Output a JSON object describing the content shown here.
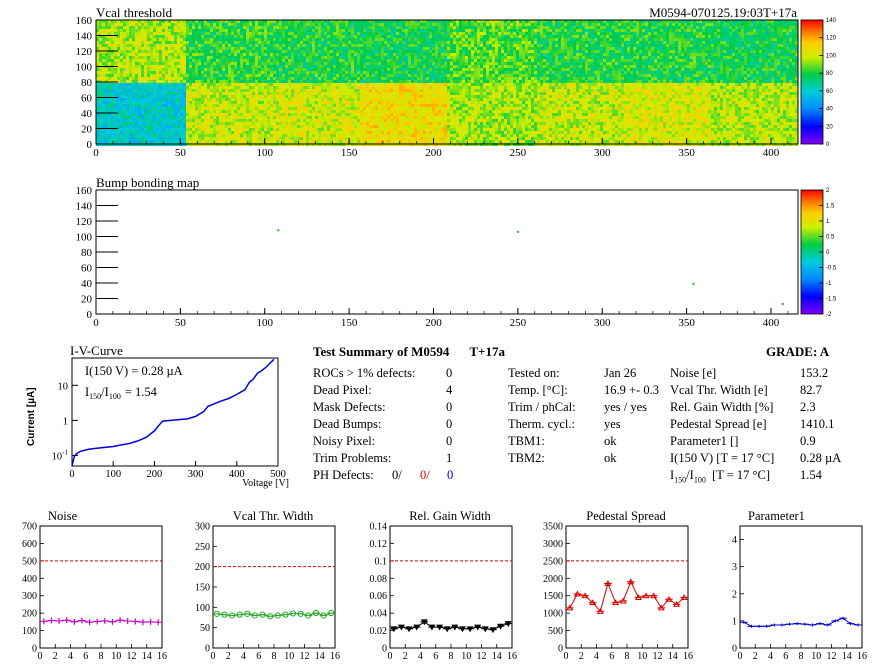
{
  "header": {
    "vcal_title": "Vcal threshold",
    "module_id": "M0594-070125.19:03T+17a",
    "bump_title": "Bump bonding map"
  },
  "chart_data": [
    {
      "type": "heatmap",
      "title": "Vcal threshold",
      "xlim": [
        0,
        416
      ],
      "ylim": [
        0,
        160
      ],
      "x_ticks": [
        "0",
        "50",
        "100",
        "150",
        "200",
        "250",
        "300",
        "350",
        "400"
      ],
      "y_ticks": [
        "0",
        "20",
        "40",
        "60",
        "80",
        "100",
        "120",
        "140",
        "160"
      ],
      "color_scale": {
        "min": 0,
        "max": 140,
        "ticks": [
          "0",
          "20",
          "40",
          "60",
          "80",
          "100",
          "120",
          "140"
        ]
      },
      "roc_means_top": [
        95,
        82,
        80,
        78,
        86,
        80,
        80,
        78
      ],
      "roc_means_bottom": [
        60,
        98,
        100,
        108,
        94,
        98,
        102,
        96
      ]
    },
    {
      "type": "heatmap",
      "title": "Bump bonding map",
      "xlim": [
        0,
        416
      ],
      "ylim": [
        0,
        160
      ],
      "x_ticks": [
        "0",
        "50",
        "100",
        "150",
        "200",
        "250",
        "300",
        "350",
        "400"
      ],
      "y_ticks": [
        "0",
        "20",
        "40",
        "60",
        "80",
        "100",
        "120",
        "140",
        "160"
      ],
      "color_scale": {
        "min": -2,
        "max": 2,
        "ticks": [
          "-2",
          "-1.5",
          "-1",
          "-0.5",
          "0",
          "0.5",
          "1",
          "1.5",
          "2"
        ]
      },
      "defects": [
        {
          "x": 108,
          "y": 108,
          "color": "#22bb22"
        },
        {
          "x": 250,
          "y": 106,
          "color": "#22bb22"
        },
        {
          "x": 354,
          "y": 39,
          "color": "#22bb22"
        },
        {
          "x": 407,
          "y": 13,
          "color": "#22bb22"
        }
      ]
    },
    {
      "type": "line",
      "title": "I-V-Curve",
      "xlabel": "Voltage [V]",
      "ylabel": "Current [µA]",
      "xlim": [
        0,
        500
      ],
      "ylim_log": [
        0.05,
        60
      ],
      "x_ticks": [
        "0",
        "100",
        "200",
        "300",
        "400",
        "500"
      ],
      "y_ticks": [
        "10^-1",
        "1",
        "10"
      ],
      "annotation_line1": "I(150 V) = 0.28 µA",
      "annotation_line2_sub1": "150",
      "annotation_line2_sub2": "100",
      "annotation_line2_value": "=  1.54",
      "x": [
        0,
        5,
        10,
        20,
        40,
        60,
        80,
        100,
        120,
        140,
        160,
        180,
        200,
        210,
        220,
        240,
        260,
        280,
        300,
        320,
        330,
        340,
        360,
        380,
        400,
        420,
        430,
        440,
        450,
        460,
        470,
        480,
        490
      ],
      "y": [
        0.05,
        0.09,
        0.11,
        0.13,
        0.15,
        0.16,
        0.17,
        0.18,
        0.2,
        0.22,
        0.26,
        0.33,
        0.5,
        0.7,
        0.95,
        1.0,
        1.05,
        1.1,
        1.3,
        1.8,
        2.5,
        2.8,
        3.5,
        4.2,
        5.5,
        7.5,
        12,
        15,
        22,
        26,
        32,
        42,
        55
      ],
      "color": "#0000dd"
    },
    {
      "type": "line",
      "title": "Noise",
      "xlim": [
        0,
        16
      ],
      "ylim": [
        0,
        700
      ],
      "threshold": 500,
      "color": "#cc00cc",
      "marker": "plus",
      "x_ticks": [
        "0",
        "2",
        "4",
        "6",
        "8",
        "10",
        "12",
        "14",
        "16"
      ],
      "y_ticks": [
        "0",
        "100",
        "200",
        "300",
        "400",
        "500",
        "600",
        "700"
      ],
      "values": [
        153,
        158,
        155,
        160,
        150,
        158,
        148,
        152,
        156,
        150,
        160,
        155,
        152,
        148,
        150,
        148
      ]
    },
    {
      "type": "line",
      "title": "Vcal Thr. Width",
      "xlim": [
        0,
        16
      ],
      "ylim": [
        0,
        300
      ],
      "threshold": 200,
      "color": "#22aa22",
      "marker": "circle",
      "x_ticks": [
        "0",
        "2",
        "4",
        "6",
        "8",
        "10",
        "12",
        "14",
        "16"
      ],
      "y_ticks": [
        "0",
        "50",
        "100",
        "150",
        "200",
        "250",
        "300"
      ],
      "values": [
        84,
        82,
        80,
        82,
        84,
        80,
        82,
        78,
        80,
        82,
        85,
        84,
        80,
        86,
        80,
        86
      ]
    },
    {
      "type": "line",
      "title": "Rel. Gain Width",
      "xlim": [
        0,
        16
      ],
      "ylim": [
        0,
        0.14
      ],
      "threshold": 0.1,
      "color": "#000000",
      "marker": "triangle",
      "x_ticks": [
        "0",
        "2",
        "4",
        "6",
        "8",
        "10",
        "12",
        "14",
        "16"
      ],
      "y_ticks": [
        "0",
        "0.02",
        "0.04",
        "0.06",
        "0.08",
        "0.1",
        "0.12",
        "0.14"
      ],
      "values": [
        0.022,
        0.024,
        0.022,
        0.024,
        0.03,
        0.024,
        0.024,
        0.022,
        0.024,
        0.022,
        0.022,
        0.024,
        0.022,
        0.021,
        0.025,
        0.028
      ]
    },
    {
      "type": "line",
      "title": "Pedestal Spread",
      "xlim": [
        0,
        16
      ],
      "ylim": [
        0,
        3500
      ],
      "threshold": 2500,
      "color": "#dd0000",
      "marker": "triangle",
      "x_ticks": [
        "0",
        "2",
        "4",
        "6",
        "8",
        "10",
        "12",
        "14",
        "16"
      ],
      "y_ticks": [
        "0",
        "500",
        "1000",
        "1500",
        "2000",
        "2500",
        "3000",
        "3500"
      ],
      "values": [
        1150,
        1550,
        1500,
        1300,
        1050,
        1850,
        1300,
        1350,
        1900,
        1450,
        1500,
        1500,
        1150,
        1400,
        1250,
        1450
      ]
    },
    {
      "type": "line",
      "title": "Parameter1",
      "xlim": [
        0,
        16
      ],
      "ylim": [
        0,
        4.5
      ],
      "color": "#0000cc",
      "marker": "dash",
      "x_ticks": [
        "0",
        "2",
        "4",
        "6",
        "8",
        "10",
        "12",
        "14",
        "16"
      ],
      "y_ticks": [
        "0",
        "1",
        "2",
        "3",
        "4"
      ],
      "values": [
        0.95,
        0.8,
        0.8,
        0.8,
        0.85,
        0.85,
        0.88,
        0.9,
        0.88,
        0.85,
        0.9,
        0.85,
        1.0,
        1.1,
        0.9,
        0.85
      ]
    }
  ],
  "summary": {
    "title": "Test Summary of M0594",
    "tag": "T+17a",
    "grade": "GRADE:  A",
    "defects": [
      {
        "label": "ROCs > 1% defects:",
        "value": "0"
      },
      {
        "label": "Dead Pixel:",
        "value": "4"
      },
      {
        "label": "Mask Defects:",
        "value": "0"
      },
      {
        "label": "Dead Bumps:",
        "value": "0"
      },
      {
        "label": "Noisy Pixel:",
        "value": "0"
      },
      {
        "label": "Trim Problems:",
        "value": "1"
      }
    ],
    "ph_label": "PH Defects:",
    "ph_values": [
      "0/",
      "0/",
      "0"
    ],
    "info": [
      {
        "label": "Tested on:",
        "value": "Jan 26"
      },
      {
        "label": "Temp. [°C]:",
        "value": "16.9 +- 0.3"
      },
      {
        "label": "Trim / phCal:",
        "value": "yes / yes"
      },
      {
        "label": "Therm. cycl.:",
        "value": "yes"
      },
      {
        "label": "TBM1:",
        "value": "ok"
      },
      {
        "label": "TBM2:",
        "value": "ok"
      }
    ],
    "params": [
      {
        "label": "Noise [e]",
        "value": "153.2"
      },
      {
        "label": "Vcal Thr. Width [e]",
        "value": "82.7"
      },
      {
        "label": "Rel. Gain Width [%]",
        "value": "2.3"
      },
      {
        "label": "Pedestal Spread [e]",
        "value": "1410.1"
      },
      {
        "label": "Parameter1 []",
        "value": "0.9"
      },
      {
        "label": "I(150 V) [T = 17 °C]",
        "value": "0.28 µA"
      }
    ],
    "ratio_sub1": "150",
    "ratio_sub2": "100",
    "ratio_cond": "[T = 17 °C]",
    "ratio_value": "1.54"
  },
  "colors": {
    "ph_black": "#000000",
    "ph_red": "#dd0000",
    "ph_blue": "#0000dd"
  }
}
